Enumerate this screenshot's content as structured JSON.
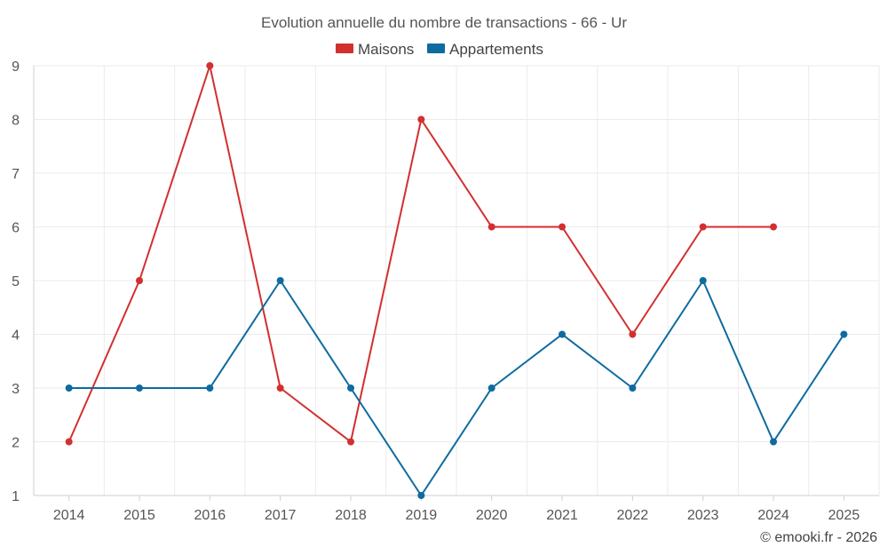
{
  "chart_data": {
    "type": "line",
    "title": "Evolution annuelle du nombre de transactions - 66 - Ur",
    "categories": [
      "2014",
      "2015",
      "2016",
      "2017",
      "2018",
      "2019",
      "2020",
      "2021",
      "2022",
      "2023",
      "2024",
      "2025"
    ],
    "ylim": [
      1,
      9
    ],
    "yticks": [
      1,
      2,
      3,
      4,
      5,
      6,
      7,
      8,
      9
    ],
    "grid": true,
    "legend_position": "top-center",
    "xlabel": "",
    "ylabel": "",
    "series": [
      {
        "name": "Maisons",
        "color": "#d32f2f",
        "values": [
          2,
          5,
          9,
          3,
          2,
          8,
          6,
          6,
          4,
          6,
          6,
          null
        ]
      },
      {
        "name": "Appartements",
        "color": "#0e6ba0",
        "values": [
          3,
          3,
          3,
          5,
          3,
          1,
          3,
          4,
          3,
          5,
          2,
          4
        ]
      }
    ]
  },
  "credit": "© emooki.fr - 2026"
}
